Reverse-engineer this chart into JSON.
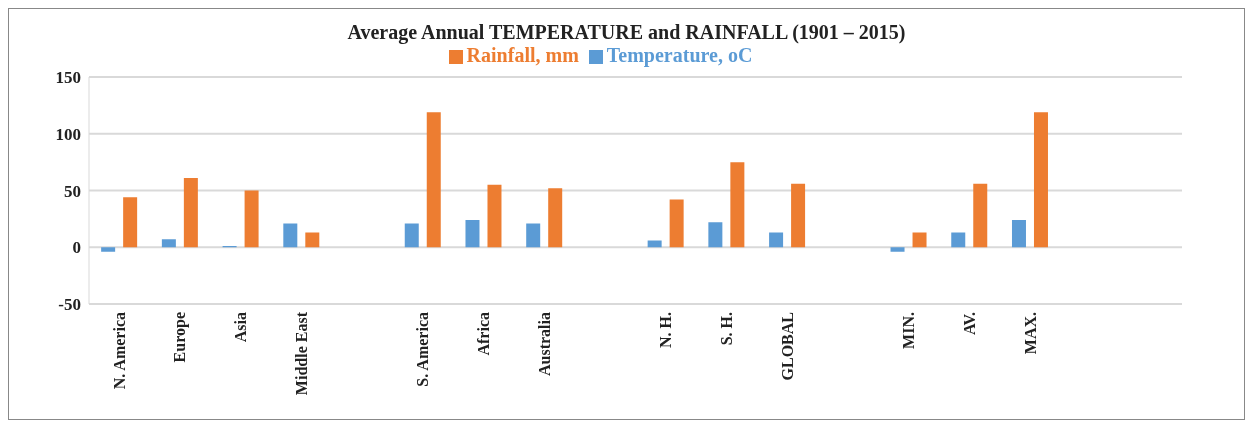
{
  "chart_data": {
    "type": "bar",
    "title": "Average Annual TEMPERATURE  and RAINFALL (1901 – 2015)",
    "categories": [
      "N. America",
      "Europe",
      "Asia",
      "Middle East",
      null,
      "S. America",
      "Africa",
      "Australia",
      null,
      "N. H.",
      "S. H.",
      "GLOBAL",
      null,
      "MIN.",
      "AV.",
      "MAX.",
      null,
      null
    ],
    "series": [
      {
        "name": "Temperature, oC",
        "color": "#5b9bd5",
        "values": [
          -4,
          7,
          1,
          21,
          null,
          21,
          24,
          21,
          null,
          6,
          22,
          13,
          null,
          -4,
          13,
          24,
          null,
          null
        ]
      },
      {
        "name": "Rainfall, mm",
        "color": "#ed7d31",
        "values": [
          44,
          61,
          50,
          13,
          null,
          119,
          55,
          52,
          null,
          42,
          75,
          56,
          null,
          13,
          56,
          119,
          null,
          null
        ]
      }
    ],
    "ylim": [
      -50,
      150
    ],
    "yticks": [
      -50,
      0,
      50,
      100,
      150
    ],
    "grid": "y",
    "legend": "top"
  }
}
